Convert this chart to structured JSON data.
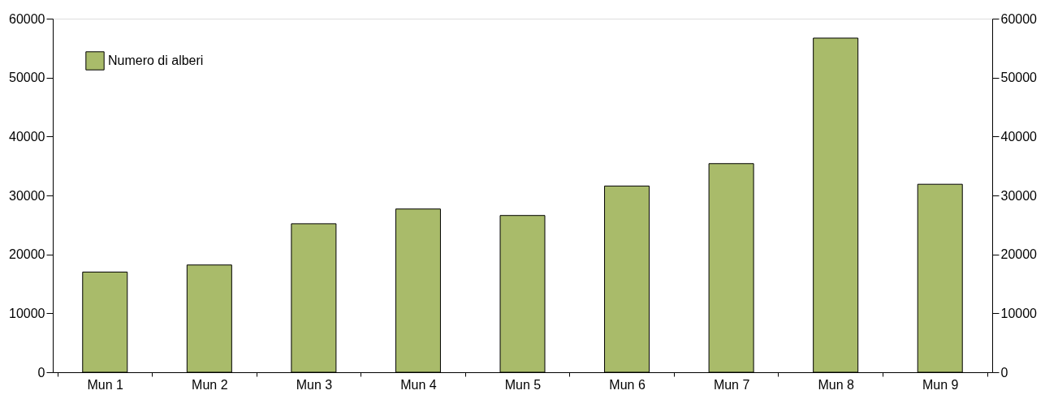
{
  "chart_data": {
    "type": "bar",
    "categories": [
      "Mun 1",
      "Mun 2",
      "Mun 3",
      "Mun 4",
      "Mun 5",
      "Mun 6",
      "Mun 7",
      "Mun 8",
      "Mun 9"
    ],
    "series": [
      {
        "name": "Numero di alberi",
        "color": "#a9bb6a",
        "values": [
          17000,
          18200,
          25200,
          27700,
          26600,
          31600,
          35400,
          56700,
          31900
        ]
      }
    ],
    "ylim": [
      0,
      60000
    ],
    "yticks": [
      0,
      10000,
      20000,
      30000,
      40000,
      50000,
      60000
    ],
    "y2lim": [
      0,
      60000
    ],
    "y2ticks": [
      0,
      10000,
      20000,
      30000,
      40000,
      50000,
      60000
    ],
    "legend": "top left",
    "grid": false
  }
}
